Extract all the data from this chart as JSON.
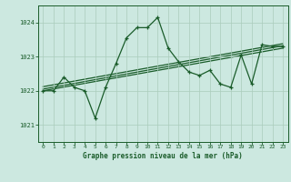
{
  "title": "Graphe pression niveau de la mer (hPa)",
  "background_color": "#cce8e0",
  "grid_color": "#aaccbb",
  "line_color": "#1a5c2a",
  "x_min": 0,
  "x_max": 23,
  "y_min": 1020.5,
  "y_max": 1024.5,
  "y_ticks": [
    1021,
    1022,
    1023,
    1024
  ],
  "x_ticks": [
    0,
    1,
    2,
    3,
    4,
    5,
    6,
    7,
    8,
    9,
    10,
    11,
    12,
    13,
    14,
    15,
    16,
    17,
    18,
    19,
    20,
    21,
    22,
    23
  ],
  "series": {
    "x": [
      0,
      1,
      2,
      3,
      4,
      5,
      6,
      7,
      8,
      9,
      10,
      11,
      12,
      13,
      14,
      15,
      16,
      17,
      18,
      19,
      20,
      21,
      22,
      23
    ],
    "y": [
      1022.0,
      1022.0,
      1022.4,
      1022.1,
      1022.0,
      1021.2,
      1022.1,
      1022.8,
      1023.55,
      1023.85,
      1023.85,
      1024.15,
      1023.25,
      1022.85,
      1022.55,
      1022.45,
      1022.6,
      1022.2,
      1022.1,
      1023.05,
      1022.2,
      1023.35,
      1023.3,
      1023.3
    ]
  },
  "trend1": [
    1022.0,
    1023.25
  ],
  "trend2": [
    1022.05,
    1023.32
  ],
  "trend3": [
    1022.12,
    1023.38
  ]
}
